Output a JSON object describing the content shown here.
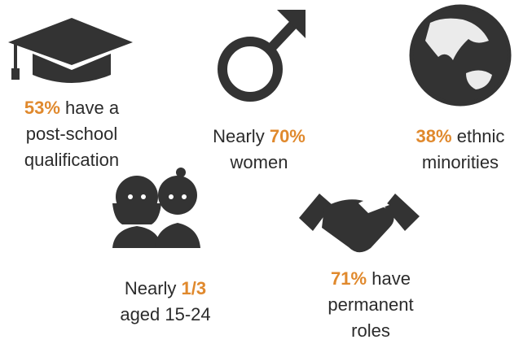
{
  "items": [
    {
      "stat": "53%",
      "suffix": "have a",
      "lines": [
        "post-school",
        "qualification"
      ]
    },
    {
      "prefix": "Nearly",
      "stat": "70%",
      "lines": [
        "women"
      ]
    },
    {
      "stat": "38%",
      "suffix": "ethnic",
      "lines": [
        "minorities"
      ]
    },
    {
      "prefix": "Nearly",
      "stat": "1/3",
      "lines": [
        "aged 15-24"
      ]
    },
    {
      "stat": "71%",
      "suffix": "have",
      "lines": [
        "permanent",
        "roles"
      ]
    }
  ]
}
